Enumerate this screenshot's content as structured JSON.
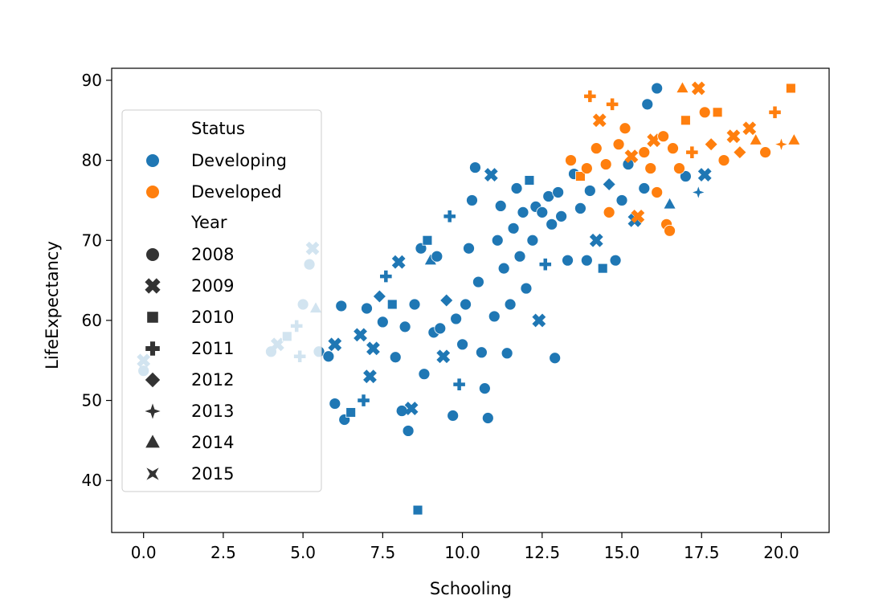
{
  "chart_data": {
    "type": "scatter",
    "xlabel": "Schooling",
    "ylabel": "LifeExpectancy",
    "xlim": [
      -1.0,
      21.5
    ],
    "ylim": [
      33.5,
      91.5
    ],
    "x_ticks": [
      0.0,
      2.5,
      5.0,
      7.5,
      10.0,
      12.5,
      15.0,
      17.5,
      20.0
    ],
    "x_tick_labels": [
      "0.0",
      "2.5",
      "5.0",
      "7.5",
      "10.0",
      "12.5",
      "15.0",
      "17.5",
      "20.0"
    ],
    "y_ticks": [
      40,
      50,
      60,
      70,
      80,
      90
    ],
    "y_tick_labels": [
      "40",
      "50",
      "60",
      "70",
      "80",
      "90"
    ],
    "grid": false,
    "legend": {
      "placement": "upper-left",
      "hue_title": "Status",
      "hue_entries": [
        {
          "label": "Developing",
          "color": "#1f77b4"
        },
        {
          "label": "Developed",
          "color": "#ff7f0e"
        }
      ],
      "style_title": "Year",
      "style_entries": [
        {
          "label": "2008",
          "marker": "circle"
        },
        {
          "label": "2009",
          "marker": "x"
        },
        {
          "label": "2010",
          "marker": "square"
        },
        {
          "label": "2011",
          "marker": "plus"
        },
        {
          "label": "2012",
          "marker": "diamond"
        },
        {
          "label": "2013",
          "marker": "star4"
        },
        {
          "label": "2014",
          "marker": "triangle"
        },
        {
          "label": "2015",
          "marker": "bowtie"
        }
      ]
    },
    "series": [
      {
        "status": "Developing",
        "color": "#1f77b4",
        "points": [
          [
            0.0,
            53.7,
            "circle"
          ],
          [
            0.0,
            55.0,
            "x"
          ],
          [
            4.0,
            56.1,
            "circle"
          ],
          [
            4.2,
            57.0,
            "x"
          ],
          [
            4.5,
            58.0,
            "square"
          ],
          [
            4.8,
            59.3,
            "plus"
          ],
          [
            4.9,
            55.5,
            "plus"
          ],
          [
            5.0,
            62.0,
            "circle"
          ],
          [
            5.2,
            67.0,
            "circle"
          ],
          [
            5.3,
            69.0,
            "x"
          ],
          [
            5.4,
            61.5,
            "triangle"
          ],
          [
            5.5,
            56.1,
            "circle"
          ],
          [
            5.8,
            55.5,
            "circle"
          ],
          [
            6.0,
            57.0,
            "x"
          ],
          [
            6.0,
            49.6,
            "circle"
          ],
          [
            6.3,
            47.6,
            "circle"
          ],
          [
            6.2,
            61.8,
            "circle"
          ],
          [
            6.5,
            48.5,
            "square"
          ],
          [
            6.8,
            58.2,
            "x"
          ],
          [
            6.9,
            50.0,
            "plus"
          ],
          [
            7.0,
            61.5,
            "circle"
          ],
          [
            7.1,
            53.0,
            "x"
          ],
          [
            7.2,
            56.5,
            "x"
          ],
          [
            7.4,
            63.0,
            "diamond"
          ],
          [
            7.5,
            59.8,
            "circle"
          ],
          [
            7.6,
            65.5,
            "plus"
          ],
          [
            7.8,
            62.0,
            "square"
          ],
          [
            7.9,
            55.4,
            "circle"
          ],
          [
            8.0,
            67.3,
            "x"
          ],
          [
            8.1,
            48.7,
            "circle"
          ],
          [
            8.2,
            59.2,
            "circle"
          ],
          [
            8.3,
            46.2,
            "circle"
          ],
          [
            8.4,
            49.0,
            "x"
          ],
          [
            8.6,
            36.3,
            "square"
          ],
          [
            8.5,
            62.0,
            "circle"
          ],
          [
            8.7,
            69.0,
            "circle"
          ],
          [
            8.8,
            53.3,
            "circle"
          ],
          [
            8.9,
            70.0,
            "square"
          ],
          [
            9.0,
            67.5,
            "triangle"
          ],
          [
            9.1,
            58.5,
            "circle"
          ],
          [
            9.2,
            68.0,
            "circle"
          ],
          [
            9.3,
            59.0,
            "circle"
          ],
          [
            9.4,
            55.5,
            "x"
          ],
          [
            9.5,
            62.5,
            "diamond"
          ],
          [
            9.6,
            73.0,
            "plus"
          ],
          [
            9.7,
            48.1,
            "circle"
          ],
          [
            9.8,
            60.2,
            "circle"
          ],
          [
            9.9,
            52.0,
            "plus"
          ],
          [
            10.0,
            57.0,
            "circle"
          ],
          [
            10.1,
            62.0,
            "circle"
          ],
          [
            10.2,
            69.0,
            "circle"
          ],
          [
            10.3,
            75.0,
            "circle"
          ],
          [
            10.4,
            79.1,
            "circle"
          ],
          [
            10.5,
            64.8,
            "circle"
          ],
          [
            10.6,
            56.0,
            "circle"
          ],
          [
            10.7,
            51.5,
            "circle"
          ],
          [
            10.8,
            47.8,
            "circle"
          ],
          [
            10.9,
            78.2,
            "x"
          ],
          [
            11.0,
            60.5,
            "circle"
          ],
          [
            11.1,
            70.0,
            "circle"
          ],
          [
            11.2,
            74.3,
            "circle"
          ],
          [
            11.3,
            66.5,
            "circle"
          ],
          [
            11.4,
            55.9,
            "circle"
          ],
          [
            11.5,
            62.0,
            "circle"
          ],
          [
            11.6,
            71.5,
            "circle"
          ],
          [
            11.7,
            76.5,
            "circle"
          ],
          [
            11.8,
            68.0,
            "circle"
          ],
          [
            11.9,
            73.5,
            "circle"
          ],
          [
            12.0,
            64.0,
            "circle"
          ],
          [
            12.1,
            77.5,
            "square"
          ],
          [
            12.2,
            70.0,
            "circle"
          ],
          [
            12.3,
            74.2,
            "circle"
          ],
          [
            12.4,
            60.0,
            "x"
          ],
          [
            12.5,
            73.5,
            "circle"
          ],
          [
            12.6,
            67.0,
            "plus"
          ],
          [
            12.7,
            75.5,
            "circle"
          ],
          [
            12.8,
            72.0,
            "circle"
          ],
          [
            12.9,
            55.3,
            "circle"
          ],
          [
            13.0,
            76.0,
            "circle"
          ],
          [
            13.1,
            73.0,
            "circle"
          ],
          [
            13.3,
            67.5,
            "circle"
          ],
          [
            13.5,
            78.3,
            "circle"
          ],
          [
            13.7,
            74.0,
            "circle"
          ],
          [
            13.9,
            67.5,
            "circle"
          ],
          [
            14.0,
            76.2,
            "circle"
          ],
          [
            14.2,
            70.0,
            "x"
          ],
          [
            14.4,
            66.5,
            "square"
          ],
          [
            14.6,
            77.0,
            "diamond"
          ],
          [
            14.8,
            67.5,
            "circle"
          ],
          [
            15.0,
            75.0,
            "circle"
          ],
          [
            15.2,
            79.5,
            "circle"
          ],
          [
            15.4,
            72.5,
            "x"
          ],
          [
            15.7,
            76.5,
            "circle"
          ],
          [
            15.8,
            87.0,
            "circle"
          ],
          [
            16.1,
            89.0,
            "circle"
          ],
          [
            16.5,
            74.5,
            "triangle"
          ],
          [
            16.8,
            79.0,
            "circle"
          ],
          [
            17.0,
            78.0,
            "circle"
          ],
          [
            17.4,
            76.0,
            "star4"
          ],
          [
            17.6,
            78.2,
            "x"
          ]
        ]
      },
      {
        "status": "Developed",
        "color": "#ff7f0e",
        "points": [
          [
            13.4,
            80.0,
            "circle"
          ],
          [
            13.7,
            78.0,
            "square"
          ],
          [
            13.9,
            79.0,
            "circle"
          ],
          [
            14.0,
            88.0,
            "plus"
          ],
          [
            14.2,
            81.5,
            "circle"
          ],
          [
            14.3,
            85.0,
            "x"
          ],
          [
            14.5,
            79.5,
            "circle"
          ],
          [
            14.6,
            73.5,
            "circle"
          ],
          [
            14.7,
            87.0,
            "plus"
          ],
          [
            14.9,
            82.0,
            "circle"
          ],
          [
            15.1,
            84.0,
            "circle"
          ],
          [
            15.3,
            80.5,
            "x"
          ],
          [
            15.5,
            73.0,
            "x"
          ],
          [
            15.7,
            81.0,
            "circle"
          ],
          [
            15.9,
            79.0,
            "circle"
          ],
          [
            16.0,
            82.5,
            "x"
          ],
          [
            16.1,
            76.0,
            "circle"
          ],
          [
            16.3,
            83.0,
            "circle"
          ],
          [
            16.4,
            72.0,
            "circle"
          ],
          [
            16.5,
            71.2,
            "circle"
          ],
          [
            16.6,
            81.5,
            "circle"
          ],
          [
            16.8,
            79.0,
            "circle"
          ],
          [
            16.9,
            89.0,
            "triangle"
          ],
          [
            17.0,
            85.0,
            "square"
          ],
          [
            17.2,
            81.0,
            "plus"
          ],
          [
            17.4,
            89.0,
            "x"
          ],
          [
            17.6,
            86.0,
            "circle"
          ],
          [
            17.8,
            82.0,
            "diamond"
          ],
          [
            18.0,
            86.0,
            "square"
          ],
          [
            18.2,
            80.0,
            "circle"
          ],
          [
            18.5,
            83.0,
            "x"
          ],
          [
            18.7,
            81.0,
            "diamond"
          ],
          [
            19.0,
            84.0,
            "x"
          ],
          [
            19.2,
            82.5,
            "triangle"
          ],
          [
            19.5,
            81.0,
            "circle"
          ],
          [
            19.8,
            86.0,
            "plus"
          ],
          [
            20.0,
            82.0,
            "star4"
          ],
          [
            20.3,
            89.0,
            "square"
          ],
          [
            20.4,
            82.5,
            "triangle"
          ]
        ]
      }
    ]
  }
}
